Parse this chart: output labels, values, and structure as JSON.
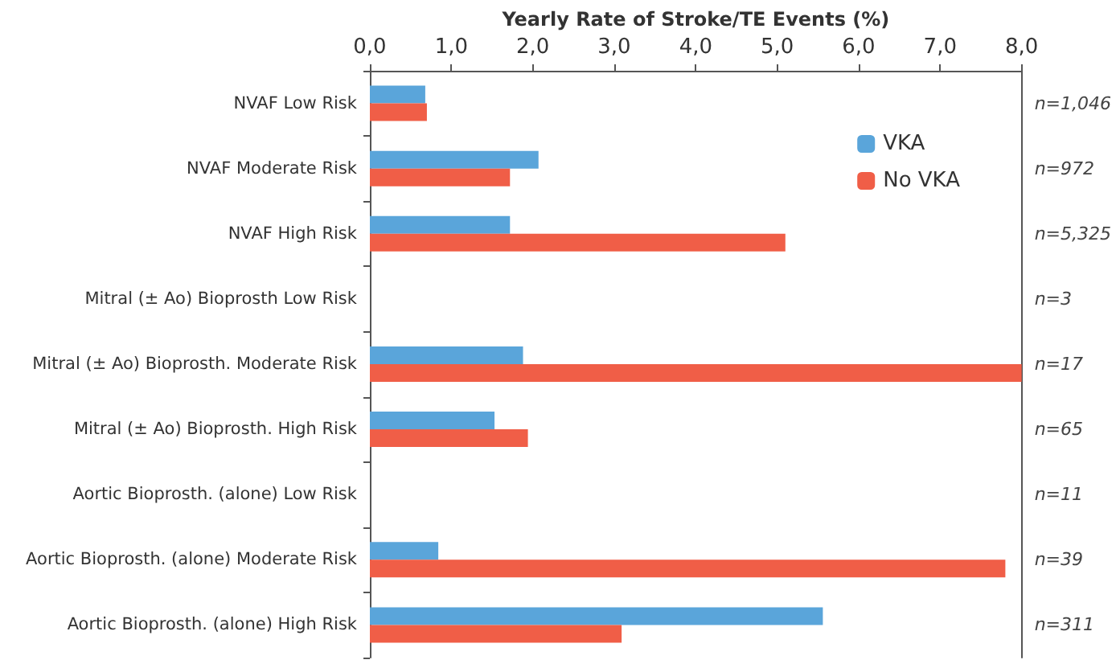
{
  "chart_data": {
    "type": "bar",
    "orientation": "horizontal",
    "xlabel": "Yearly Rate of Stroke/TE Events (%)",
    "categories": [
      "NVAF Low Risk",
      "NVAF Moderate Risk",
      "NVAF High Risk",
      "Mitral (± Ao) Bioprosth Low Risk",
      "Mitral (± Ao) Bioprosth. Moderate Risk",
      "Mitral (± Ao) Bioprosth. High Risk",
      "Aortic Bioprosth. (alone) Low Risk",
      "Aortic Bioprosth. (alone) Moderate Risk",
      "Aortic Bioprosth. (alone) High Risk"
    ],
    "series": [
      {
        "name": "VKA",
        "color": "#5aa5da",
        "values": [
          0.68,
          2.07,
          1.72,
          0,
          1.88,
          1.53,
          0,
          0.84,
          5.56
        ]
      },
      {
        "name": "No VKA",
        "color": "#f05e47",
        "values": [
          0.7,
          1.72,
          5.1,
          0,
          8.0,
          1.94,
          0,
          7.8,
          3.09
        ]
      }
    ],
    "xlim": [
      0,
      8
    ],
    "xticks": [
      {
        "value": 0,
        "label": "0,0"
      },
      {
        "value": 1,
        "label": "1,0"
      },
      {
        "value": 2,
        "label": "2,0"
      },
      {
        "value": 3,
        "label": "3,0"
      },
      {
        "value": 4,
        "label": "4,0"
      },
      {
        "value": 5,
        "label": "5,0"
      },
      {
        "value": 6,
        "label": "6,0"
      },
      {
        "value": 7,
        "label": "7,0"
      },
      {
        "value": 8,
        "label": "8,0"
      }
    ],
    "annotations": [
      "n=1,046",
      "n=972",
      "n=5,325",
      "n=3",
      "n=17",
      "n=65",
      "n=11",
      "n=39",
      "n=311"
    ],
    "legend": "top right",
    "grid": false
  }
}
